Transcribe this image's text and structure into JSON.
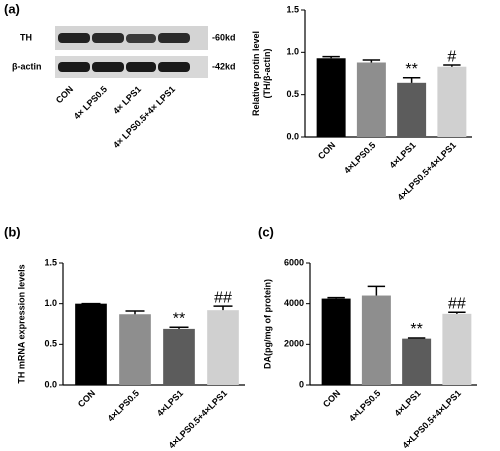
{
  "blot": {
    "panel_label": "(a)",
    "rows": [
      "TH",
      "β-actin"
    ],
    "sizes": [
      "-60kd",
      "-42kd"
    ],
    "lanes": [
      "CON",
      "4× LPS0.5",
      "4× LPS1",
      "4× LPS0.5+4× LPS1"
    ]
  },
  "chart_data": [
    {
      "type": "bar",
      "ylabel": [
        "Relative protin level",
        "(TH/β-actin)"
      ],
      "categories": [
        "CON",
        "4×LPS0.5",
        "4×LPS1",
        "4×LPS0.5+4×LPS1"
      ],
      "values": [
        0.93,
        0.88,
        0.64,
        0.83
      ],
      "errors": [
        0.02,
        0.03,
        0.06,
        0.02
      ],
      "colors": [
        "#000000",
        "#8e8e8e",
        "#5c5c5c",
        "#d0d0d0"
      ],
      "annotations": [
        null,
        null,
        "**",
        "#"
      ],
      "ylim": [
        0,
        1.5
      ],
      "yticks": [
        {
          "value": 0,
          "label": "0.0"
        },
        0.5,
        {
          "value": 1,
          "label": "1.0"
        },
        1.5
      ]
    },
    {
      "type": "bar",
      "panel_label": "(b)",
      "ylabel": [
        "TH mRNA expression levels"
      ],
      "categories": [
        "CON",
        "4×LPS0.5",
        "4×LPS1",
        "4×LPS0.5+4×LPS1"
      ],
      "values": [
        1.0,
        0.87,
        0.69,
        0.92
      ],
      "errors": [
        0,
        0.04,
        0.02,
        0.05
      ],
      "colors": [
        "#000000",
        "#8e8e8e",
        "#5c5c5c",
        "#d0d0d0"
      ],
      "annotations": [
        null,
        null,
        "**",
        "##"
      ],
      "ylim": [
        0,
        1.5
      ],
      "yticks": [
        {
          "value": 0,
          "label": "0.0"
        },
        0.5,
        {
          "value": 1,
          "label": "1.0"
        },
        1.5
      ]
    },
    {
      "type": "bar",
      "panel_label": "(c)",
      "ylabel": [
        "DA(pg/mg of protein)"
      ],
      "categories": [
        "CON",
        "4×LPS0.5",
        "4×LPS1",
        "4×LPS0.5+4×LPS1"
      ],
      "values": [
        4250,
        4400,
        2280,
        3500
      ],
      "errors": [
        50,
        450,
        30,
        80
      ],
      "colors": [
        "#000000",
        "#8e8e8e",
        "#5c5c5c",
        "#d0d0d0"
      ],
      "annotations": [
        null,
        null,
        "**",
        "##"
      ],
      "ylim": [
        0,
        6000
      ],
      "yticks": [
        0,
        2000,
        4000,
        6000
      ]
    }
  ]
}
